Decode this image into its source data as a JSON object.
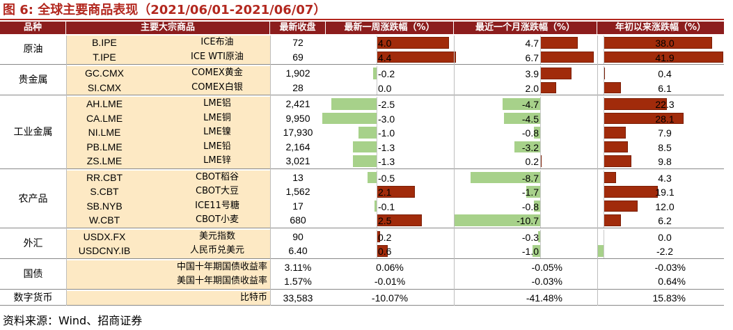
{
  "title": "图 6:  全球主要商品表现（2021/06/01-2021/06/07）",
  "footer": "资料来源：Wind、招商证券",
  "headers": [
    "品种",
    "主要大宗商品",
    "最新收盘",
    "最新一周涨跌幅（%）",
    "最近一个月涨跌幅（%）",
    "年初以来涨跌幅（%）"
  ],
  "colors": {
    "header_bg": "#8c1d1d",
    "beige": "#fde9c4",
    "positive_bar": "#a12b0b",
    "negative_bar": "#a7d18a",
    "title": "#b3281f"
  },
  "groups": [
    {
      "name": "原油",
      "rows": [
        {
          "code": "B.IPE",
          "name": "ICE布油",
          "close": "72",
          "week": 4.0,
          "month": 4.7,
          "ytd": 38.0,
          "week_text": "4.0",
          "month_text": "4.7",
          "ytd_text": "38.0"
        },
        {
          "code": "T.IPE",
          "name": "ICE WTI原油",
          "close": "69",
          "week": 4.4,
          "month": 6.7,
          "ytd": 41.9,
          "week_text": "4.4",
          "month_text": "6.7",
          "ytd_text": "41.9"
        }
      ]
    },
    {
      "name": "贵金属",
      "rows": [
        {
          "code": "GC.CMX",
          "name": "COMEX黄金",
          "close": "1,902",
          "week": -0.2,
          "month": 3.9,
          "ytd": 0.4,
          "week_text": "-0.2",
          "month_text": "3.9",
          "ytd_text": "0.4"
        },
        {
          "code": "SI.CMX",
          "name": "COMEX白银",
          "close": "28",
          "week": 0.0,
          "month": 2.0,
          "ytd": 6.1,
          "week_text": "0.0",
          "month_text": "2.0",
          "ytd_text": "6.1"
        }
      ]
    },
    {
      "name": "工业金属",
      "rows": [
        {
          "code": "AH.LME",
          "name": "LME铝",
          "close": "2,421",
          "week": -2.5,
          "month": -4.7,
          "ytd": 22.3,
          "week_text": "-2.5",
          "month_text": "-4.7",
          "ytd_text": "22.3"
        },
        {
          "code": "CA.LME",
          "name": "LME铜",
          "close": "9,950",
          "week": -3.0,
          "month": -4.5,
          "ytd": 28.1,
          "week_text": "-3.0",
          "month_text": "-4.5",
          "ytd_text": "28.1"
        },
        {
          "code": "NI.LME",
          "name": "LME镍",
          "close": "17,930",
          "week": -1.0,
          "month": -0.8,
          "ytd": 7.9,
          "week_text": "-1.0",
          "month_text": "-0.8",
          "ytd_text": "7.9"
        },
        {
          "code": "PB.LME",
          "name": "LME铅",
          "close": "2,164",
          "week": -1.3,
          "month": -3.2,
          "ytd": 8.5,
          "week_text": "-1.3",
          "month_text": "-3.2",
          "ytd_text": "8.5"
        },
        {
          "code": "ZS.LME",
          "name": "LME锌",
          "close": "3,021",
          "week": -1.3,
          "month": 0.2,
          "ytd": 9.8,
          "week_text": "-1.3",
          "month_text": "0.2",
          "ytd_text": "9.8"
        }
      ]
    },
    {
      "name": "农产品",
      "rows": [
        {
          "code": "RR.CBT",
          "name": "CBOT稻谷",
          "close": "13",
          "week": -0.5,
          "month": -8.7,
          "ytd": 4.3,
          "week_text": "-0.5",
          "month_text": "-8.7",
          "ytd_text": "4.3"
        },
        {
          "code": "S.CBT",
          "name": "CBOT大豆",
          "close": "1,562",
          "week": 2.1,
          "month": -1.7,
          "ytd": 19.1,
          "week_text": "2.1",
          "month_text": "-1.7",
          "ytd_text": "19.1"
        },
        {
          "code": "SB.NYB",
          "name": "ICE11号糖",
          "close": "17",
          "week": -0.1,
          "month": -0.8,
          "ytd": 12.0,
          "week_text": "-0.1",
          "month_text": "-0.8",
          "ytd_text": "12.0"
        },
        {
          "code": "W.CBT",
          "name": "CBOT小麦",
          "close": "680",
          "week": 2.5,
          "month": -10.7,
          "ytd": 6.2,
          "week_text": "2.5",
          "month_text": "-10.7",
          "ytd_text": "6.2"
        }
      ]
    },
    {
      "name": "外汇",
      "rows": [
        {
          "code": "USDX.FX",
          "name": "美元指数",
          "close": "90",
          "week": 0.2,
          "month": -0.3,
          "ytd": 0.0,
          "week_text": "0.2",
          "month_text": "-0.3",
          "ytd_text": "0.0"
        },
        {
          "code": "USDCNY.IB",
          "name": "人民币兑美元",
          "close": "6.40",
          "week": 0.6,
          "month": -1.0,
          "ytd": -2.2,
          "week_text": "0.6",
          "month_text": "-1.0",
          "ytd_text": "-2.2"
        }
      ]
    },
    {
      "name": "国债",
      "rows": [
        {
          "code": "",
          "name": "中国十年期国债收益率",
          "close": "3.11%",
          "week_text": "0.06%",
          "month_text": "-0.05%",
          "ytd_text": "-0.03%"
        },
        {
          "code": "",
          "name": "美国十年期国债收益率",
          "close": "1.57%",
          "week_text": "-0.01%",
          "month_text": "-0.03%",
          "ytd_text": "0.64%"
        }
      ]
    },
    {
      "name": "数字货币",
      "rows": [
        {
          "code": "",
          "name": "比特币",
          "close": "33,583",
          "week_text": "-10.07%",
          "month_text": "-41.48%",
          "ytd_text": "15.83%"
        }
      ]
    }
  ]
}
